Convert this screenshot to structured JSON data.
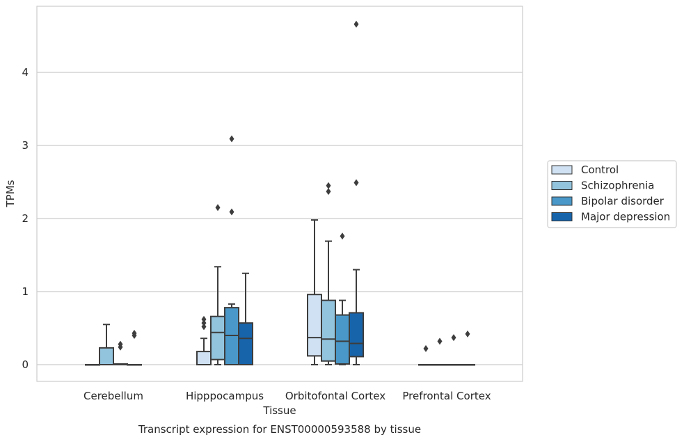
{
  "chart_data": {
    "type": "box",
    "caption": "Transcript expression for ENST00000593588 by tissue",
    "xlabel": "Tissue",
    "ylabel": "TPMs",
    "ylim": [
      -0.23,
      4.88
    ],
    "yticks": [
      0,
      1,
      2,
      3,
      4
    ],
    "grid": "horizontal",
    "legend_position": "right",
    "categories": [
      "Cerebellum",
      "Hipppocampus",
      "Orbitofontal Cortex",
      "Prefrontal Cortex"
    ],
    "series": [
      {
        "name": "Control",
        "color": "#cfe1f2",
        "boxes": [
          {
            "whisker_low": 0,
            "q1": 0,
            "median": 0,
            "q3": 0,
            "whisker_high": 0,
            "outliers": []
          },
          {
            "whisker_low": 0,
            "q1": 0,
            "median": 0,
            "q3": 0.18,
            "whisker_high": 0.36,
            "outliers": [
              0.52,
              0.57,
              0.62
            ]
          },
          {
            "whisker_low": 0,
            "q1": 0.12,
            "median": 0.37,
            "q3": 0.96,
            "whisker_high": 1.98,
            "outliers": []
          },
          {
            "whisker_low": 0,
            "q1": 0,
            "median": 0,
            "q3": 0,
            "whisker_high": 0,
            "outliers": [
              0.22
            ]
          }
        ]
      },
      {
        "name": "Schizophrenia",
        "color": "#93c4de",
        "boxes": [
          {
            "whisker_low": 0,
            "q1": 0,
            "median": 0,
            "q3": 0.23,
            "whisker_high": 0.55,
            "outliers": []
          },
          {
            "whisker_low": 0,
            "q1": 0.07,
            "median": 0.44,
            "q3": 0.66,
            "whisker_high": 1.34,
            "outliers": [
              2.15
            ]
          },
          {
            "whisker_low": 0,
            "q1": 0.05,
            "median": 0.35,
            "q3": 0.88,
            "whisker_high": 1.69,
            "outliers": [
              2.37,
              2.45
            ]
          },
          {
            "whisker_low": 0,
            "q1": 0,
            "median": 0,
            "q3": 0,
            "whisker_high": 0,
            "outliers": [
              0.32
            ]
          }
        ]
      },
      {
        "name": "Bipolar disorder",
        "color": "#4a98c9",
        "boxes": [
          {
            "whisker_low": 0,
            "q1": 0,
            "median": 0,
            "q3": 0.01,
            "whisker_high": 0.01,
            "outliers": [
              0.24,
              0.28
            ]
          },
          {
            "whisker_low": 0,
            "q1": 0,
            "median": 0.4,
            "q3": 0.78,
            "whisker_high": 0.83,
            "outliers": [
              2.09,
              3.09
            ]
          },
          {
            "whisker_low": 0,
            "q1": 0.01,
            "median": 0.32,
            "q3": 0.68,
            "whisker_high": 0.88,
            "outliers": [
              1.76
            ]
          },
          {
            "whisker_low": 0,
            "q1": 0,
            "median": 0,
            "q3": 0,
            "whisker_high": 0,
            "outliers": [
              0.37
            ]
          }
        ]
      },
      {
        "name": "Major depression",
        "color": "#1764ab",
        "boxes": [
          {
            "whisker_low": 0,
            "q1": 0,
            "median": 0,
            "q3": 0,
            "whisker_high": 0,
            "outliers": [
              0.4,
              0.43
            ]
          },
          {
            "whisker_low": 0,
            "q1": 0,
            "median": 0.36,
            "q3": 0.57,
            "whisker_high": 1.25,
            "outliers": []
          },
          {
            "whisker_low": 0,
            "q1": 0.11,
            "median": 0.29,
            "q3": 0.71,
            "whisker_high": 1.3,
            "outliers": [
              2.49,
              4.66
            ]
          },
          {
            "whisker_low": 0,
            "q1": 0,
            "median": 0,
            "q3": 0,
            "whisker_high": 0,
            "outliers": [
              0.42
            ]
          }
        ]
      }
    ]
  }
}
